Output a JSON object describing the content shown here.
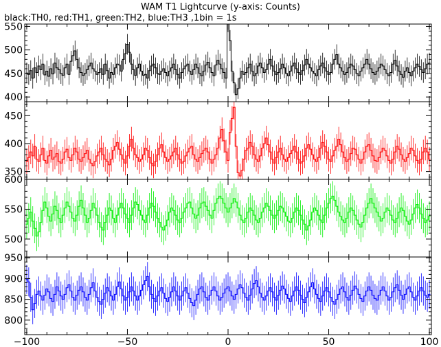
{
  "title": "WAM T1 Lightcurve (y-axis: Counts)",
  "subtitle": "black:TH0, red:TH1, green:TH2, blue:TH3 ,1bin = 1s",
  "colors": {
    "TH0": "#000000",
    "TH1": "#ff0000",
    "TH2": "#00ee00",
    "TH3": "#0000ff"
  },
  "chart_data": {
    "type": "line",
    "style": "step with error bars",
    "grid": false,
    "x": {
      "min": -100,
      "max": 100,
      "step": 1,
      "ticks": [
        -100,
        -50,
        0,
        50,
        100
      ],
      "xlim": [
        -101,
        101
      ]
    },
    "series": [
      {
        "name": "TH0",
        "color": "#000000",
        "ylim": [
          390,
          555
        ],
        "yticks": [
          400,
          450,
          500,
          550
        ],
        "error": 22,
        "values": [
          451,
          448,
          456,
          440,
          462,
          452,
          466,
          458,
          470,
          447,
          455,
          444,
          460,
          449,
          472,
          462,
          458,
          450,
          446,
          462,
          470,
          448,
          476,
          488,
          498,
          480,
          462,
          452,
          446,
          450,
          458,
          466,
          472,
          460,
          455,
          448,
          452,
          460,
          448,
          470,
          456,
          440,
          452,
          448,
          462,
          470,
          468,
          455,
          480,
          492,
          512,
          495,
          470,
          458,
          446,
          462,
          470,
          455,
          446,
          448,
          440,
          456,
          466,
          470,
          462,
          450,
          448,
          455,
          460,
          452,
          445,
          455,
          462,
          470,
          458,
          448,
          440,
          452,
          460,
          466,
          470,
          455,
          448,
          458,
          470,
          462,
          450,
          445,
          455,
          468,
          474,
          462,
          452,
          445,
          468,
          478,
          470,
          460,
          452,
          440,
          560,
          520,
          455,
          430,
          405,
          418,
          440,
          455,
          448,
          452,
          462,
          470,
          455,
          445,
          450,
          466,
          472,
          462,
          452,
          458,
          470,
          480,
          466,
          455,
          448,
          452,
          460,
          470,
          462,
          450,
          445,
          455,
          466,
          472,
          460,
          452,
          448,
          456,
          468,
          480,
          470,
          462,
          455,
          450,
          445,
          458,
          466,
          472,
          462,
          455,
          448,
          452,
          470,
          480,
          490,
          470,
          462,
          455,
          448,
          452,
          462,
          470,
          466,
          458,
          450,
          445,
          455,
          462,
          470,
          480,
          470,
          460,
          452,
          448,
          455,
          462,
          470,
          466,
          458,
          450,
          445,
          452,
          470,
          478,
          466,
          455,
          448,
          442,
          455,
          462,
          452,
          445,
          455,
          462,
          470,
          465,
          458,
          452,
          460,
          470,
          472
        ]
      },
      {
        "name": "TH1",
        "color": "#ff0000",
        "ylim": [
          336,
          475
        ],
        "yticks": [
          350,
          400,
          450
        ],
        "error": 22,
        "values": [
          368,
          375,
          385,
          378,
          395,
          372,
          368,
          380,
          392,
          370,
          365,
          378,
          388,
          372,
          376,
          382,
          368,
          365,
          372,
          385,
          390,
          375,
          370,
          380,
          392,
          385,
          372,
          368,
          375,
          382,
          388,
          372,
          365,
          360,
          368,
          378,
          385,
          392,
          380,
          372,
          368,
          362,
          372,
          388,
          395,
          402,
          390,
          380,
          372,
          365,
          378,
          395,
          408,
          392,
          380,
          375,
          368,
          372,
          380,
          392,
          388,
          375,
          365,
          360,
          368,
          380,
          392,
          398,
          385,
          375,
          368,
          372,
          378,
          385,
          392,
          380,
          372,
          365,
          368,
          378,
          385,
          392,
          395,
          380,
          372,
          368,
          375,
          382,
          388,
          392,
          385,
          372,
          365,
          372,
          380,
          392,
          410,
          425,
          405,
          385,
          370,
          420,
          445,
          465,
          395,
          348,
          342,
          352,
          372,
          388,
          392,
          402,
          395,
          380,
          372,
          368,
          378,
          392,
          400,
          410,
          398,
          385,
          372,
          365,
          375,
          385,
          392,
          380,
          372,
          368,
          375,
          382,
          388,
          395,
          385,
          372,
          365,
          368,
          378,
          392,
          398,
          390,
          380,
          372,
          368,
          375,
          392,
          402,
          395,
          385,
          372,
          368,
          378,
          388,
          395,
          408,
          398,
          385,
          375,
          368,
          372,
          382,
          392,
          390,
          380,
          372,
          365,
          372,
          385,
          395,
          398,
          388,
          378,
          370,
          368,
          375,
          385,
          392,
          388,
          378,
          370,
          365,
          372,
          385,
          395,
          390,
          380,
          372,
          368,
          375,
          382,
          392,
          388,
          378,
          370,
          365,
          372,
          385,
          392,
          385,
          372
        ]
      },
      {
        "name": "TH2",
        "color": "#00ee00",
        "ylim": [
          470,
          600
        ],
        "yticks": [
          500,
          550,
          600
        ],
        "error": 25,
        "values": [
          525,
          535,
          545,
          530,
          518,
          505,
          512,
          528,
          548,
          562,
          552,
          538,
          530,
          542,
          555,
          548,
          535,
          528,
          540,
          552,
          562,
          555,
          545,
          535,
          530,
          540,
          555,
          565,
          552,
          540,
          528,
          535,
          548,
          560,
          552,
          540,
          528,
          520,
          515,
          528,
          540,
          552,
          548,
          535,
          528,
          540,
          552,
          560,
          552,
          542,
          535,
          528,
          540,
          552,
          562,
          558,
          548,
          540,
          532,
          528,
          540,
          552,
          560,
          555,
          545,
          535,
          528,
          520,
          515,
          522,
          532,
          545,
          552,
          548,
          540,
          532,
          528,
          535,
          545,
          552,
          560,
          562,
          552,
          542,
          535,
          540,
          552,
          560,
          562,
          555,
          548,
          540,
          535,
          548,
          560,
          568,
          572,
          568,
          560,
          552,
          545,
          552,
          560,
          568,
          562,
          552,
          540,
          532,
          528,
          535,
          545,
          552,
          548,
          540,
          532,
          528,
          535,
          545,
          552,
          560,
          555,
          548,
          540,
          535,
          540,
          548,
          555,
          552,
          545,
          538,
          530,
          528,
          535,
          545,
          552,
          548,
          540,
          532,
          525,
          515,
          522,
          532,
          545,
          552,
          548,
          540,
          532,
          528,
          540,
          552,
          560,
          568,
          572,
          565,
          555,
          545,
          538,
          532,
          528,
          535,
          545,
          552,
          548,
          540,
          532,
          525,
          520,
          528,
          540,
          552,
          560,
          568,
          560,
          552,
          545,
          538,
          530,
          535,
          545,
          552,
          548,
          540,
          532,
          528,
          535,
          545,
          552,
          548,
          538,
          530,
          525,
          532,
          542,
          552,
          558,
          552,
          542,
          535,
          528,
          532,
          538
        ]
      },
      {
        "name": "TH3",
        "color": "#0000ff",
        "ylim": [
          765,
          952
        ],
        "yticks": [
          800,
          850,
          900,
          950
        ],
        "error": 35,
        "values": [
          898,
          892,
          855,
          825,
          840,
          862,
          870,
          858,
          848,
          860,
          875,
          868,
          852,
          845,
          862,
          880,
          870,
          858,
          850,
          862,
          878,
          885,
          870,
          855,
          848,
          860,
          872,
          880,
          868,
          855,
          848,
          862,
          878,
          890,
          870,
          855,
          845,
          838,
          850,
          865,
          878,
          870,
          858,
          848,
          862,
          880,
          892,
          875,
          858,
          848,
          855,
          868,
          880,
          870,
          858,
          848,
          858,
          872,
          885,
          895,
          905,
          880,
          862,
          852,
          845,
          858,
          870,
          878,
          865,
          852,
          845,
          855,
          868,
          880,
          870,
          858,
          848,
          858,
          870,
          878,
          865,
          852,
          842,
          835,
          848,
          862,
          875,
          880,
          868,
          855,
          848,
          860,
          872,
          880,
          870,
          858,
          848,
          855,
          865,
          875,
          880,
          870,
          858,
          850,
          862,
          875,
          885,
          878,
          865,
          855,
          848,
          860,
          875,
          888,
          895,
          880,
          865,
          855,
          848,
          858,
          870,
          878,
          868,
          855,
          848,
          860,
          872,
          882,
          875,
          862,
          852,
          845,
          858,
          870,
          880,
          872,
          860,
          850,
          842,
          855,
          868,
          880,
          890,
          875,
          862,
          852,
          845,
          858,
          870,
          878,
          868,
          855,
          845,
          838,
          850,
          862,
          875,
          880,
          868,
          855,
          848,
          860,
          872,
          882,
          875,
          862,
          852,
          845,
          858,
          870,
          880,
          872,
          860,
          852,
          848,
          860,
          872,
          880,
          870,
          858,
          848,
          855,
          868,
          878,
          885,
          872,
          860,
          850,
          862,
          875,
          880,
          868,
          855,
          848,
          858,
          870,
          878,
          870,
          860,
          855,
          862
        ]
      }
    ]
  }
}
